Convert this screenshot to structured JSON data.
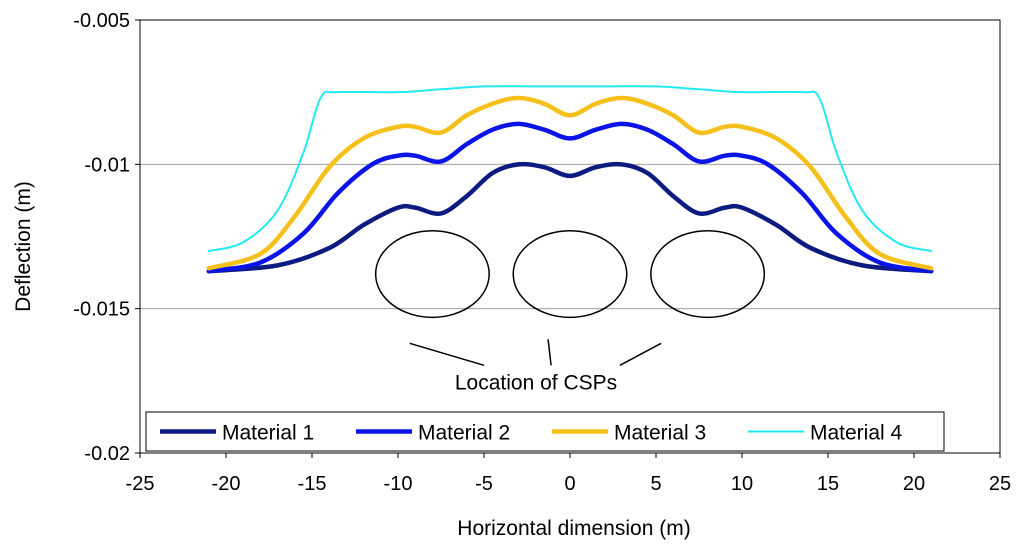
{
  "chart_data": {
    "type": "line",
    "title": "",
    "xlabel": "Horizontal dimension (m)",
    "ylabel": "Deflection (m)",
    "xlim": [
      -25,
      25
    ],
    "ylim": [
      -0.02,
      -0.005
    ],
    "xticks": [
      -25,
      -20,
      -15,
      -10,
      -5,
      0,
      5,
      10,
      15,
      20,
      25
    ],
    "xtick_labels": [
      "-25",
      "-20",
      "-15",
      "-10",
      "-5",
      "0",
      "5",
      "10",
      "15",
      "20",
      "25"
    ],
    "yticks": [
      -0.005,
      -0.01,
      -0.015,
      -0.02
    ],
    "ytick_labels": [
      "-0.005",
      "-0.01",
      "-0.015",
      "-0.02"
    ],
    "grid": "horizontal",
    "legend_position": "bottom",
    "series": [
      {
        "name": "Material 1",
        "color": "#0d1a80",
        "width": "thick",
        "points": [
          [
            -21,
            -0.0137
          ],
          [
            -17,
            -0.0135
          ],
          [
            -14,
            -0.0129
          ],
          [
            -12,
            -0.0121
          ],
          [
            -10,
            -0.0115
          ],
          [
            -9,
            -0.0115
          ],
          [
            -7.5,
            -0.0117
          ],
          [
            -6,
            -0.0111
          ],
          [
            -4.5,
            -0.0103
          ],
          [
            -3,
            -0.01
          ],
          [
            -1.5,
            -0.0101
          ],
          [
            0,
            -0.0104
          ],
          [
            1.5,
            -0.0101
          ],
          [
            3,
            -0.01
          ],
          [
            4.5,
            -0.0103
          ],
          [
            6,
            -0.0111
          ],
          [
            7.5,
            -0.0117
          ],
          [
            9,
            -0.0115
          ],
          [
            10,
            -0.0115
          ],
          [
            12,
            -0.0121
          ],
          [
            14,
            -0.0129
          ],
          [
            17,
            -0.0135
          ],
          [
            21,
            -0.0137
          ]
        ]
      },
      {
        "name": "Material 2",
        "color": "#0a14e6",
        "width": "thick",
        "points": [
          [
            -21,
            -0.0137
          ],
          [
            -18,
            -0.0134
          ],
          [
            -15.5,
            -0.0124
          ],
          [
            -13.5,
            -0.011
          ],
          [
            -11.5,
            -0.01
          ],
          [
            -10,
            -0.0097
          ],
          [
            -9,
            -0.0097
          ],
          [
            -7.5,
            -0.0099
          ],
          [
            -6,
            -0.0093
          ],
          [
            -4.5,
            -0.0088
          ],
          [
            -3,
            -0.0086
          ],
          [
            -1.5,
            -0.0088
          ],
          [
            0,
            -0.0091
          ],
          [
            1.5,
            -0.0088
          ],
          [
            3,
            -0.0086
          ],
          [
            4.5,
            -0.0088
          ],
          [
            6,
            -0.0093
          ],
          [
            7.5,
            -0.0099
          ],
          [
            9,
            -0.0097
          ],
          [
            10,
            -0.0097
          ],
          [
            11.5,
            -0.01
          ],
          [
            13.5,
            -0.011
          ],
          [
            15.5,
            -0.0124
          ],
          [
            18,
            -0.0134
          ],
          [
            21,
            -0.0137
          ]
        ]
      },
      {
        "name": "Material 3",
        "color": "#f5c01a",
        "width": "thick",
        "points": [
          [
            -21,
            -0.0136
          ],
          [
            -18,
            -0.0131
          ],
          [
            -16,
            -0.0118
          ],
          [
            -14,
            -0.0101
          ],
          [
            -12,
            -0.0091
          ],
          [
            -10,
            -0.0087
          ],
          [
            -9,
            -0.0087
          ],
          [
            -7.5,
            -0.0089
          ],
          [
            -6,
            -0.0083
          ],
          [
            -4.5,
            -0.0079
          ],
          [
            -3,
            -0.0077
          ],
          [
            -1.5,
            -0.0079
          ],
          [
            0,
            -0.0083
          ],
          [
            1.5,
            -0.0079
          ],
          [
            3,
            -0.0077
          ],
          [
            4.5,
            -0.0079
          ],
          [
            6,
            -0.0083
          ],
          [
            7.5,
            -0.0089
          ],
          [
            9,
            -0.0087
          ],
          [
            10,
            -0.0087
          ],
          [
            12,
            -0.0091
          ],
          [
            14,
            -0.0101
          ],
          [
            16,
            -0.0118
          ],
          [
            18,
            -0.0131
          ],
          [
            21,
            -0.0136
          ]
        ]
      },
      {
        "name": "Material 4",
        "color": "#22e8f0",
        "width": "thin",
        "points": [
          [
            -21,
            -0.013
          ],
          [
            -19,
            -0.0127
          ],
          [
            -17,
            -0.0116
          ],
          [
            -15.5,
            -0.0096
          ],
          [
            -14.5,
            -0.0077
          ],
          [
            -13.5,
            -0.0075
          ],
          [
            -10,
            -0.0075
          ],
          [
            -7.5,
            -0.0074
          ],
          [
            -5,
            -0.0073
          ],
          [
            -2,
            -0.0073
          ],
          [
            0,
            -0.0073
          ],
          [
            2,
            -0.0073
          ],
          [
            5,
            -0.0073
          ],
          [
            7.5,
            -0.0074
          ],
          [
            10,
            -0.0075
          ],
          [
            13.5,
            -0.0075
          ],
          [
            14.5,
            -0.0077
          ],
          [
            15.5,
            -0.0096
          ],
          [
            17,
            -0.0116
          ],
          [
            19,
            -0.0127
          ],
          [
            21,
            -0.013
          ]
        ]
      }
    ],
    "annotations": {
      "label": "Location of CSPs",
      "csp_centers_x": [
        -8,
        0,
        8
      ],
      "csp_center_y": -0.0138,
      "csp_radius_x": 3.3,
      "csp_radius_y": 0.0015
    }
  }
}
